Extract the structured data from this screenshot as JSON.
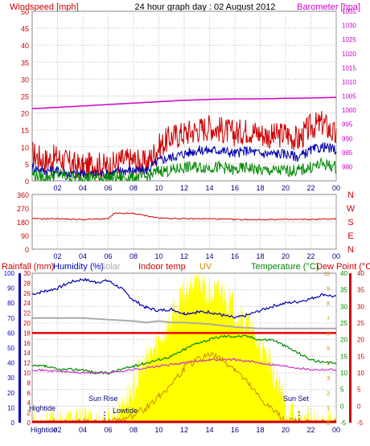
{
  "title": "24 hour graph day : 02 August 2012",
  "colors": {
    "wind": "#cc0000",
    "baro": "#cc00cc",
    "dir": "#cc0000",
    "rain": "#cc0000",
    "humidity": "#0000cc",
    "solar": "#aaaaaa",
    "indoor": "#cc0000",
    "uv": "#cc8800",
    "temp": "#008800",
    "dew": "#cc0000",
    "grid": "#bbbbbb",
    "solar_fill": "#ffff00",
    "indoor_line": "#ee0000",
    "dew_line": "#cc33cc",
    "humidity_line": "#0000aa",
    "baro_line": "#cc00cc",
    "dir_line": "#cc0000",
    "green_series": "#008800",
    "blue_series": "#0000aa"
  },
  "panels": {
    "top": {
      "left_label": "Windspeed [mph]",
      "right_label": "Barometer [hpa]",
      "left_ticks": [
        "50",
        "45",
        "40",
        "35",
        "30",
        "25",
        "20",
        "15",
        "10",
        "5",
        "0"
      ],
      "right_ticks": [
        "1035",
        "1030",
        "1025",
        "1020",
        "1015",
        "1010",
        "1005",
        "1000",
        "995",
        "990",
        "985",
        "980"
      ],
      "x_ticks": [
        "02",
        "04",
        "06",
        "08",
        "10",
        "12",
        "14",
        "16",
        "18",
        "20",
        "22",
        "00"
      ]
    },
    "middle": {
      "left_ticks": [
        "360",
        "270",
        "180",
        "90",
        "0"
      ],
      "right_ticks": [
        "N",
        "W",
        "S",
        "E",
        "N"
      ],
      "x_ticks": [
        "02",
        "04",
        "06",
        "08",
        "10",
        "12",
        "14",
        "16",
        "18",
        "20",
        "22",
        "00"
      ]
    },
    "bottom": {
      "header": {
        "rainfall": "Rainfall (mm)",
        "humidity": "Humidity (%)",
        "solar": "Solar",
        "indoor": "Indoor temp",
        "uv": "UV",
        "temperature": "Temperature (°C)",
        "dewpoint": "Dew Point (°C)"
      },
      "humidity_ticks": [
        "100",
        "90",
        "80",
        "70",
        "60",
        "50",
        "40",
        "30",
        "20",
        "10",
        "0"
      ],
      "rain_ticks": [
        "30",
        "28",
        "26",
        "24",
        "22",
        "20",
        "18",
        "16",
        "14",
        "12",
        "10",
        "8",
        "6",
        "4",
        "2",
        "0"
      ],
      "uv_ticks": [
        "10",
        "9",
        "8",
        "7",
        "6",
        "5",
        "4",
        "3",
        "2",
        "1",
        "0"
      ],
      "temp_ticks": [
        "40",
        "35",
        "30",
        "25",
        "20",
        "15",
        "10",
        "5",
        "0",
        "-5"
      ],
      "dew_ticks": [
        "40",
        "35",
        "30",
        "25",
        "20",
        "15",
        "10",
        "5",
        "0",
        "-5"
      ],
      "x_ticks": [
        "Hightide",
        "02",
        "04",
        "06",
        "08",
        "10",
        "12",
        "14",
        "16",
        "18",
        "20",
        "22",
        "00"
      ],
      "annotations": {
        "hightide": "Hightide",
        "sunrise": "Sun Rise",
        "lowtide": "Lowtide",
        "sunset": "Sun Set"
      }
    }
  },
  "chart_data": [
    {
      "type": "line",
      "title": "24 hour graph day : 02 August 2012",
      "x_unit": "hour",
      "xlim": [
        0,
        24
      ],
      "ylim_left": [
        0,
        50
      ],
      "ylim_right": [
        975,
        1035
      ],
      "series": [
        {
          "name": "Windspeed [mph]",
          "axis": "left",
          "x": [
            0,
            1,
            2,
            3,
            4,
            5,
            6,
            7,
            8,
            9,
            10,
            11,
            12,
            13,
            14,
            15,
            16,
            17,
            18,
            19,
            20,
            21,
            22,
            23,
            24
          ],
          "values": [
            8,
            6,
            7,
            5,
            4,
            5,
            4,
            6,
            6,
            5,
            10,
            13,
            14,
            15,
            16,
            15,
            14,
            15,
            14,
            13,
            14,
            12,
            16,
            17,
            13
          ]
        },
        {
          "axis": "left",
          "x": [
            0,
            1,
            2,
            3,
            4,
            5,
            6,
            7,
            8,
            9,
            10,
            11,
            12,
            13,
            14,
            15,
            16,
            17,
            18,
            19,
            20,
            21,
            22,
            23,
            24
          ],
          "values": [
            4,
            3,
            3,
            2,
            2,
            2,
            2,
            3,
            3,
            3,
            6,
            7,
            8,
            9,
            9,
            9,
            8,
            9,
            8,
            8,
            8,
            7,
            9,
            10,
            9
          ]
        },
        {
          "axis": "left",
          "x": [
            0,
            1,
            2,
            3,
            4,
            5,
            6,
            7,
            8,
            9,
            10,
            11,
            12,
            13,
            14,
            15,
            16,
            17,
            18,
            19,
            20,
            21,
            22,
            23,
            24
          ],
          "values": [
            2,
            1,
            2,
            1,
            1,
            1,
            1,
            1,
            1,
            1,
            3,
            3,
            4,
            4,
            4,
            4,
            3,
            4,
            3,
            3,
            3,
            3,
            4,
            5,
            4
          ]
        },
        {
          "name": "Barometer [hpa]",
          "axis": "right",
          "x": [
            0,
            2,
            4,
            6,
            8,
            10,
            12,
            14,
            16,
            18,
            20,
            22,
            24
          ],
          "values": [
            1000.5,
            1001,
            1001.5,
            1002,
            1002.5,
            1003,
            1003.5,
            1003.8,
            1004,
            1004,
            1004.2,
            1004.3,
            1004.5
          ]
        }
      ]
    },
    {
      "type": "line",
      "xlim": [
        0,
        24
      ],
      "ylim": [
        0,
        360
      ],
      "series": [
        {
          "x": [
            0,
            2,
            4,
            6,
            6.5,
            8,
            10,
            12,
            14,
            16,
            18,
            20,
            22,
            24
          ],
          "values": [
            200,
            200,
            195,
            200,
            235,
            235,
            205,
            200,
            200,
            195,
            195,
            195,
            195,
            200
          ]
        }
      ]
    },
    {
      "type": "line",
      "xlim": [
        0,
        24
      ],
      "series": [
        {
          "name": "Humidity (%)",
          "axis": "humidity",
          "x": [
            0,
            1,
            2,
            3,
            4,
            5,
            6,
            7,
            8,
            9,
            10,
            11,
            12,
            13,
            14,
            15,
            16,
            17,
            18,
            19,
            20,
            21,
            22,
            23,
            24
          ],
          "values": [
            86,
            88,
            90,
            94,
            96,
            94,
            95,
            90,
            82,
            77,
            75,
            76,
            73,
            74,
            74,
            72,
            70,
            72,
            75,
            78,
            80,
            81,
            83,
            86,
            84
          ]
        },
        {
          "name": "Solar",
          "axis": "humidity",
          "x": [
            0,
            4,
            8,
            9,
            10,
            11,
            12,
            14,
            16,
            18,
            20,
            22,
            24
          ],
          "values": [
            70,
            70,
            68,
            67,
            68,
            67,
            67,
            66,
            64,
            63,
            63,
            63,
            63
          ]
        },
        {
          "name": "Indoor temp",
          "axis": "temp",
          "x": [
            0,
            4,
            8,
            12,
            16,
            20,
            24
          ],
          "values": [
            22,
            22,
            22,
            22,
            22,
            22,
            22
          ]
        },
        {
          "name": "Temperature (°C)",
          "axis": "temp",
          "x": [
            0,
            1,
            2,
            3,
            4,
            5,
            6,
            7,
            8,
            9,
            10,
            11,
            12,
            13,
            14,
            15,
            16,
            17,
            18,
            19,
            20,
            21,
            22,
            23,
            24
          ],
          "values": [
            12,
            12,
            11,
            11,
            11,
            10,
            10,
            11,
            12,
            13,
            14,
            15,
            17,
            19,
            20,
            21,
            21,
            21,
            20,
            20,
            18,
            16,
            14,
            13,
            13
          ]
        },
        {
          "name": "Dew Point (°C)",
          "axis": "temp",
          "x": [
            0,
            2,
            4,
            6,
            8,
            10,
            12,
            14,
            16,
            18,
            20,
            22,
            24
          ],
          "values": [
            11,
            10.5,
            10,
            10,
            11,
            12,
            13,
            14,
            14,
            13,
            12,
            11,
            11
          ]
        },
        {
          "name": "UV",
          "axis": "uv",
          "x": [
            0,
            6,
            7,
            8,
            9,
            10,
            11,
            12,
            13,
            14,
            15,
            16,
            17,
            18,
            19,
            20,
            21,
            24
          ],
          "values": [
            0,
            0,
            0.2,
            0.5,
            1,
            1.8,
            2.6,
            3.6,
            4.2,
            4.6,
            4.2,
            3.6,
            2.6,
            1.6,
            0.8,
            0.2,
            0,
            0
          ]
        },
        {
          "name": "Solar",
          "type": "area",
          "axis": "uv",
          "x": [
            0,
            6,
            6.5,
            7,
            8,
            9,
            10,
            11,
            12,
            12.5,
            13,
            14,
            15,
            16,
            17,
            18,
            19,
            20,
            21,
            24
          ],
          "values": [
            0,
            0,
            0.3,
            1,
            2.5,
            4,
            5.5,
            7,
            8.5,
            9.8,
            9.5,
            8.5,
            8.8,
            7.5,
            6.5,
            5,
            3.5,
            1,
            0,
            0
          ]
        }
      ]
    }
  ]
}
